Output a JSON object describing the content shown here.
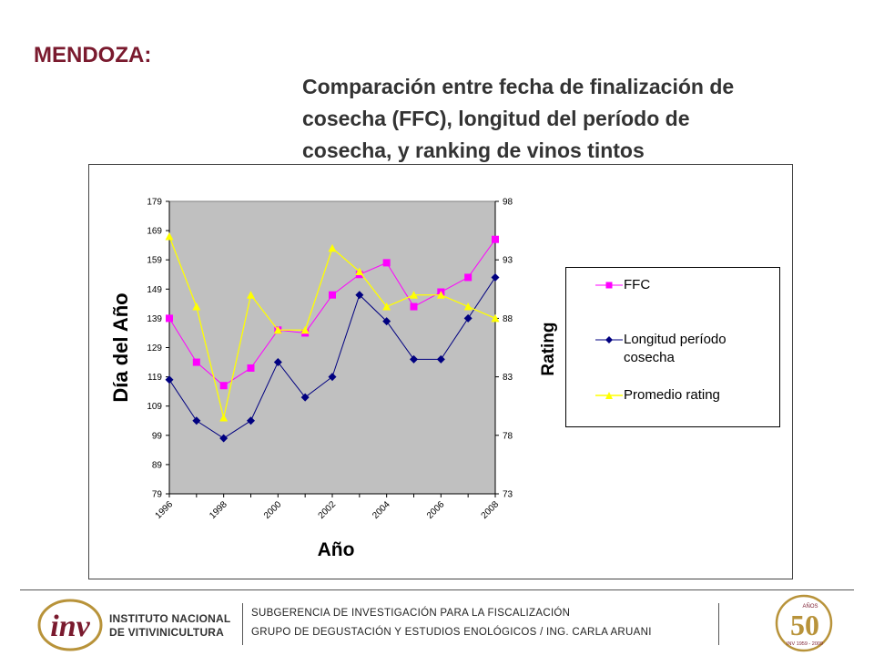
{
  "heading": "MENDOZA:",
  "subtitle_lines": [
    "Comparación entre fecha de finalización de",
    "cosecha (FFC), longitud del período de",
    "cosecha, y ranking de vinos tintos"
  ],
  "chart_data": {
    "type": "line",
    "x": [
      1996,
      1997,
      1998,
      1999,
      2000,
      2001,
      2002,
      2003,
      2004,
      2005,
      2006,
      2007,
      2008
    ],
    "x_tick_labels": [
      "1996",
      "1998",
      "2000",
      "2002",
      "2004",
      "2006",
      "2008"
    ],
    "xlabel": "Año",
    "ylabel_left": "Día del Año",
    "ylabel_right": "Rating",
    "ylim_left": [
      79,
      179
    ],
    "ylim_right": [
      73,
      98
    ],
    "yticks_left": [
      "79",
      "89",
      "99",
      "109",
      "119",
      "129",
      "139",
      "149",
      "159",
      "169",
      "179"
    ],
    "yticks_right": [
      "73",
      "78",
      "83",
      "88",
      "93",
      "98"
    ],
    "series": [
      {
        "name": "FFC",
        "axis": "left",
        "color": "#ff00ff",
        "marker": "square",
        "values": [
          139,
          124,
          116,
          122,
          135,
          134,
          147,
          154,
          158,
          143,
          148,
          153,
          166
        ]
      },
      {
        "name": "Longitud período cosecha",
        "axis": "left",
        "color": "#000080",
        "marker": "diamond",
        "values": [
          118,
          104,
          98,
          104,
          124,
          112,
          119,
          147,
          138,
          125,
          125,
          139,
          153
        ]
      },
      {
        "name": "Promedio rating",
        "axis": "right",
        "color": "#ffff00",
        "marker": "triangle",
        "values": [
          95,
          89,
          79.5,
          90,
          87,
          87,
          94,
          92,
          89,
          90,
          90,
          89,
          88
        ]
      }
    ],
    "plot_background": "#c0c0c0",
    "legend_position": "right"
  },
  "legend": {
    "ffc": "FFC",
    "longitud_line1": "Longitud período",
    "longitud_line2": "cosecha",
    "rating": "Promedio rating"
  },
  "footer": {
    "logo_letters": "inv",
    "org_line1": "INSTITUTO NACIONAL",
    "org_line2": "DE VITIVINICULTURA",
    "line1": "SUBGERENCIA DE INVESTIGACIÓN PARA LA FISCALIZACIÓN",
    "line2": "GRUPO DE DEGUSTACIÓN Y ESTUDIOS ENOLÓGICOS / ING. CARLA ARUANI",
    "seal_number": "50",
    "seal_top": "AÑOS",
    "seal_bottom": "INV 1959 - 2009"
  },
  "colors": {
    "heading": "#7a1a2e",
    "ffc": "#ff00ff",
    "longitud": "#000080",
    "rating": "#ffff00",
    "seal_gold": "#b8933a"
  }
}
